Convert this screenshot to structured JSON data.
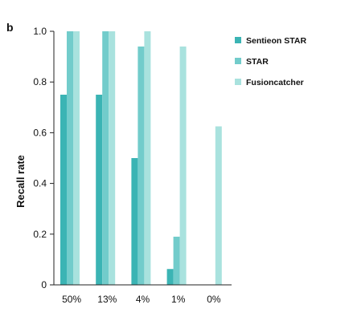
{
  "chart_data": {
    "type": "bar",
    "panel_label": "b",
    "title": "",
    "xlabel": "",
    "ylabel": "Recall rate",
    "ylim": [
      0,
      1.0
    ],
    "yticks": [
      "0",
      "0.2",
      "0.4",
      "0.6",
      "0.8",
      "1.0"
    ],
    "categories": [
      "50%",
      "13%",
      "4%",
      "1%",
      "0%"
    ],
    "grid": false,
    "legend_position": "top-right",
    "series": [
      {
        "name": "Sentieon STAR",
        "color": "#3bb4b4",
        "values": [
          0.75,
          0.75,
          0.5,
          0.0625,
          0
        ]
      },
      {
        "name": "STAR",
        "color": "#72cccb",
        "values": [
          1.0,
          1.0,
          0.94,
          0.19,
          0
        ]
      },
      {
        "name": "Fusioncatcher",
        "color": "#a9e2de",
        "values": [
          1.0,
          1.0,
          1.0,
          0.94,
          0.625
        ]
      }
    ]
  }
}
